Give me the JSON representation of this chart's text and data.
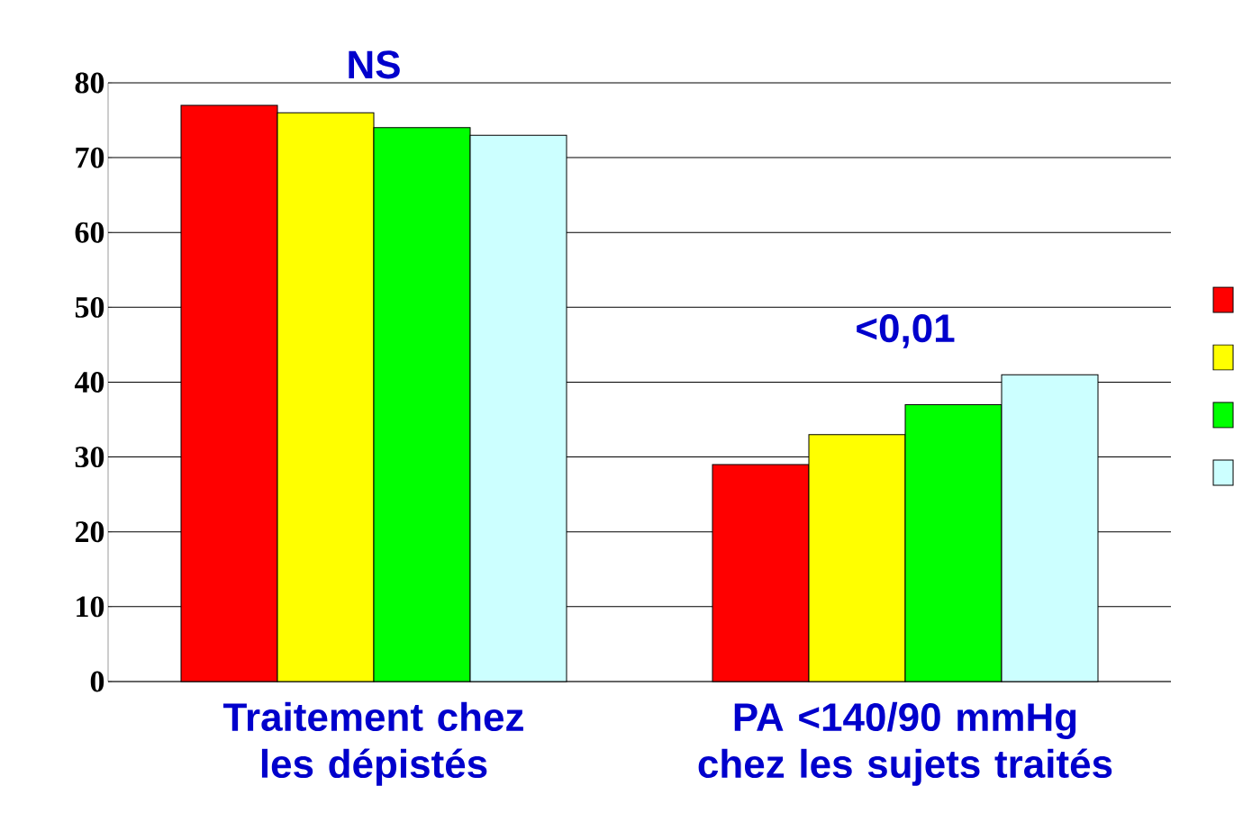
{
  "chart_data": {
    "type": "bar",
    "categories": [
      "Traitement chez les dépistés",
      "PA <140/90 mmHg chez les sujets traités"
    ],
    "series": [
      {
        "color": "#ff0000",
        "values": [
          77,
          29
        ]
      },
      {
        "color": "#ffff00",
        "values": [
          76,
          33
        ]
      },
      {
        "color": "#00ff00",
        "values": [
          74,
          37
        ]
      },
      {
        "color": "#ccffff",
        "values": [
          73,
          41
        ]
      }
    ],
    "ylim": [
      0,
      80
    ],
    "yticks": [
      0,
      10,
      20,
      30,
      40,
      50,
      60,
      70,
      80
    ],
    "grid": "y",
    "annotations": [
      "NS",
      "<0,01"
    ]
  }
}
